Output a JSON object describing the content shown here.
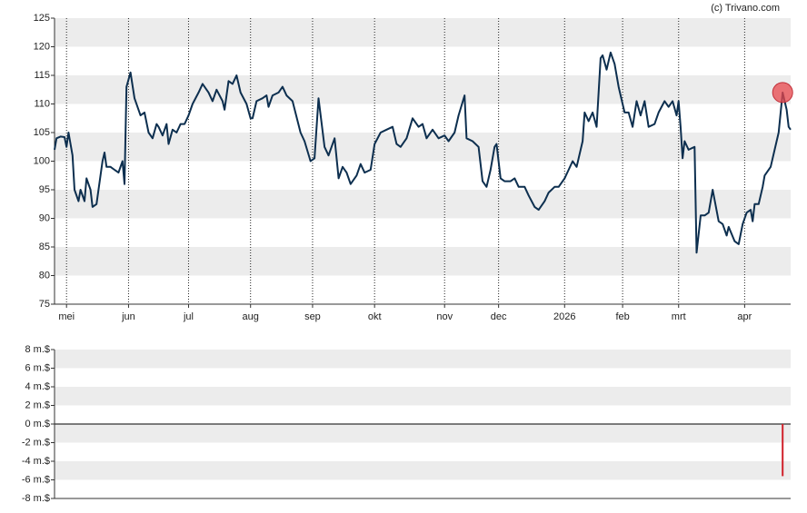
{
  "chart_data": [
    {
      "type": "line",
      "annotation": "(c) Trivano.com",
      "xlim": [
        0,
        368
      ],
      "xticks": [
        {
          "value": 6,
          "label": "mei"
        },
        {
          "value": 37,
          "label": "jun"
        },
        {
          "value": 67,
          "label": "jul"
        },
        {
          "value": 98,
          "label": "aug"
        },
        {
          "value": 129,
          "label": "sep"
        },
        {
          "value": 160,
          "label": "okt"
        },
        {
          "value": 195,
          "label": "nov"
        },
        {
          "value": 222,
          "label": "dec"
        },
        {
          "value": 255,
          "label": "2026"
        },
        {
          "value": 284,
          "label": "feb"
        },
        {
          "value": 312,
          "label": "mrt"
        },
        {
          "value": 345,
          "label": "apr"
        }
      ],
      "ylim": [
        75,
        125
      ],
      "yticks": [
        75,
        80,
        85,
        90,
        95,
        100,
        105,
        110,
        115,
        120,
        125
      ],
      "grid": true,
      "xgrid": true,
      "x": [
        0,
        1,
        3,
        5,
        6,
        7,
        9,
        10,
        12,
        13,
        15,
        16,
        18,
        19,
        21,
        22,
        24,
        25,
        26,
        28,
        30,
        32,
        34,
        35,
        36,
        38,
        40,
        43,
        45,
        47,
        49,
        51,
        52,
        54,
        56,
        57,
        59,
        61,
        63,
        65,
        67,
        69,
        72,
        74,
        77,
        79,
        81,
        84,
        85,
        87,
        89,
        91,
        93,
        96,
        98,
        99,
        101,
        104,
        106,
        107,
        109,
        112,
        114,
        116,
        119,
        123,
        125,
        128,
        130,
        132,
        135,
        137,
        140,
        142,
        144,
        146,
        148,
        151,
        153,
        155,
        158,
        160,
        163,
        166,
        169,
        171,
        173,
        176,
        179,
        182,
        184,
        186,
        189,
        192,
        195,
        197,
        200,
        202,
        205,
        206,
        209,
        212,
        214,
        216,
        218,
        220,
        221,
        223,
        225,
        228,
        230,
        232,
        235,
        237,
        240,
        242,
        245,
        247,
        250,
        252,
        255,
        257,
        259,
        261,
        264,
        265,
        267,
        269,
        271,
        273,
        274,
        276,
        278,
        280,
        282,
        285,
        287,
        289,
        291,
        293,
        295,
        297,
        300,
        302,
        305,
        307,
        309,
        311,
        312,
        313,
        314,
        315,
        317,
        320,
        321,
        323,
        325,
        327,
        329,
        332,
        334,
        336,
        337,
        340,
        342,
        344,
        346,
        348,
        349,
        350,
        352,
        354,
        355,
        358,
        360,
        362,
        364,
        366,
        367,
        368
      ],
      "series": [
        {
          "color": "#0d2f4f",
          "highlight_color": "#e8474c",
          "values": [
            102,
            104,
            104.3,
            104.2,
            102.5,
            105,
            101,
            95,
            93,
            95,
            93,
            97,
            95,
            92,
            92.5,
            95,
            100,
            101.5,
            99,
            99,
            98.5,
            98,
            100,
            96,
            113,
            115.5,
            111,
            108,
            108.5,
            105,
            104,
            106.5,
            106,
            104.5,
            106.5,
            103,
            105.5,
            105,
            106.5,
            106.5,
            108,
            110,
            112,
            113.5,
            112,
            110.5,
            112.5,
            110.5,
            109,
            114,
            113.5,
            115,
            112,
            110,
            107.5,
            107.5,
            110.5,
            111,
            111.5,
            109.5,
            111.5,
            112,
            113,
            111.5,
            110.5,
            105,
            103.5,
            100,
            100.5,
            111,
            102.5,
            101,
            104,
            97,
            99,
            98,
            96,
            97.5,
            99.5,
            98,
            98.5,
            103,
            105,
            105.5,
            106,
            103,
            102.5,
            104,
            107.5,
            106,
            106.5,
            104,
            105.5,
            104,
            104.5,
            103.5,
            105,
            108,
            111.5,
            104,
            103.5,
            102.5,
            96.5,
            95.5,
            98.5,
            102.5,
            103,
            97,
            96.5,
            96.5,
            97,
            95.5,
            95.5,
            94,
            92,
            91.5,
            93,
            94.5,
            95.5,
            95.5,
            97,
            98.5,
            100,
            99,
            103.5,
            108.5,
            107,
            108.5,
            106,
            118,
            118.5,
            116,
            119,
            117,
            113,
            108.5,
            108.5,
            106,
            110.5,
            108,
            110.5,
            106,
            106.5,
            108.5,
            110.5,
            109.5,
            110.5,
            108,
            110.5,
            106,
            100.5,
            103.5,
            102,
            102.5,
            84,
            90.5,
            90.5,
            91,
            95,
            89.5,
            89,
            87,
            88.5,
            86,
            85.5,
            89,
            91,
            91.5,
            89.5,
            92.5,
            92.5,
            95.5,
            97.5,
            99,
            102,
            105,
            112,
            109,
            106,
            105.5
          ]
        }
      ]
    },
    {
      "type": "bar",
      "xlim": [
        0,
        368
      ],
      "ylim": [
        -8,
        8
      ],
      "yticks": [
        {
          "value": -8,
          "label": "-8 m.$"
        },
        {
          "value": -6,
          "label": "-6 m.$"
        },
        {
          "value": -4,
          "label": "-4 m.$"
        },
        {
          "value": -2,
          "label": "-2 m.$"
        },
        {
          "value": 0,
          "label": "0 m.$"
        },
        {
          "value": 2,
          "label": "2 m.$"
        },
        {
          "value": 4,
          "label": "4 m.$"
        },
        {
          "value": 6,
          "label": "6 m.$"
        },
        {
          "value": 8,
          "label": "8 m.$"
        }
      ],
      "grid": true,
      "xgrid": false,
      "x": [
        364
      ],
      "series": [
        {
          "color": "#d0202a",
          "values": [
            -5.6
          ]
        }
      ]
    }
  ]
}
